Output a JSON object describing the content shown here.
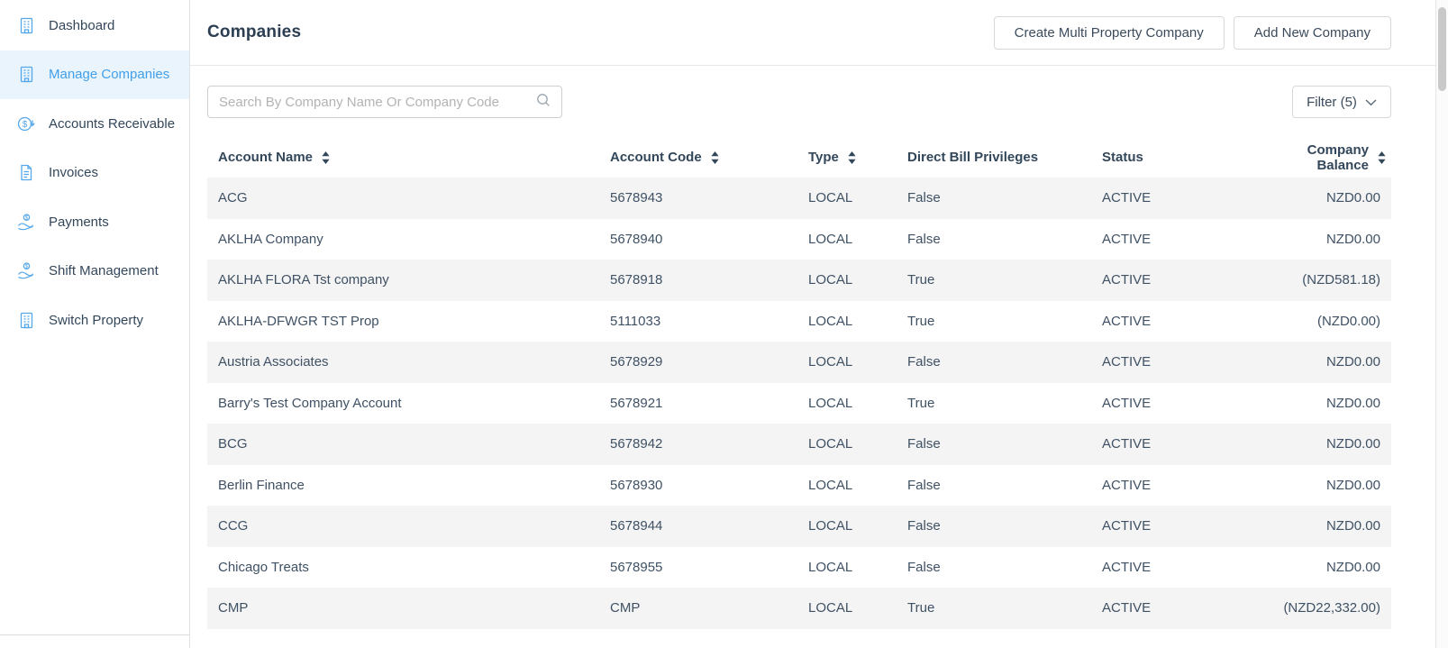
{
  "sidebar": {
    "items": [
      {
        "label": "Dashboard",
        "icon": "building",
        "active": false
      },
      {
        "label": "Manage Companies",
        "icon": "building",
        "active": true
      },
      {
        "label": "Accounts Receivable",
        "icon": "dollar-circle",
        "active": false
      },
      {
        "label": "Invoices",
        "icon": "invoice",
        "active": false
      },
      {
        "label": "Payments",
        "icon": "hand-coin",
        "active": false
      },
      {
        "label": "Shift Management",
        "icon": "hand-coin",
        "active": false
      },
      {
        "label": "Switch Property",
        "icon": "building",
        "active": false
      }
    ]
  },
  "header": {
    "title": "Companies",
    "create_multi_button": "Create Multi Property Company",
    "add_new_button": "Add New Company"
  },
  "toolbar": {
    "search_placeholder": "Search By Company Name Or Company Code",
    "filter_label": "Filter (5)"
  },
  "table": {
    "columns": [
      {
        "label": "Account Name",
        "sortable": true
      },
      {
        "label": "Account Code",
        "sortable": true
      },
      {
        "label": "Type",
        "sortable": true
      },
      {
        "label": "Direct Bill Privileges",
        "sortable": false
      },
      {
        "label": "Status",
        "sortable": false
      },
      {
        "label": "Company Balance",
        "sortable": true
      }
    ],
    "rows": [
      {
        "account_name": "ACG",
        "account_code": "5678943",
        "type": "LOCAL",
        "direct_bill": "False",
        "status": "ACTIVE",
        "balance": "NZD0.00"
      },
      {
        "account_name": "AKLHA Company",
        "account_code": "5678940",
        "type": "LOCAL",
        "direct_bill": "False",
        "status": "ACTIVE",
        "balance": "NZD0.00"
      },
      {
        "account_name": "AKLHA FLORA Tst company",
        "account_code": "5678918",
        "type": "LOCAL",
        "direct_bill": "True",
        "status": "ACTIVE",
        "balance": "(NZD581.18)"
      },
      {
        "account_name": "AKLHA-DFWGR TST Prop",
        "account_code": "5111033",
        "type": "LOCAL",
        "direct_bill": "True",
        "status": "ACTIVE",
        "balance": "(NZD0.00)"
      },
      {
        "account_name": "Austria Associates",
        "account_code": "5678929",
        "type": "LOCAL",
        "direct_bill": "False",
        "status": "ACTIVE",
        "balance": "NZD0.00"
      },
      {
        "account_name": "Barry's Test Company Account",
        "account_code": "5678921",
        "type": "LOCAL",
        "direct_bill": "True",
        "status": "ACTIVE",
        "balance": "NZD0.00"
      },
      {
        "account_name": "BCG",
        "account_code": "5678942",
        "type": "LOCAL",
        "direct_bill": "False",
        "status": "ACTIVE",
        "balance": "NZD0.00"
      },
      {
        "account_name": "Berlin Finance",
        "account_code": "5678930",
        "type": "LOCAL",
        "direct_bill": "False",
        "status": "ACTIVE",
        "balance": "NZD0.00"
      },
      {
        "account_name": "CCG",
        "account_code": "5678944",
        "type": "LOCAL",
        "direct_bill": "False",
        "status": "ACTIVE",
        "balance": "NZD0.00"
      },
      {
        "account_name": "Chicago Treats",
        "account_code": "5678955",
        "type": "LOCAL",
        "direct_bill": "False",
        "status": "ACTIVE",
        "balance": "NZD0.00"
      },
      {
        "account_name": "CMP",
        "account_code": "CMP",
        "type": "LOCAL",
        "direct_bill": "True",
        "status": "ACTIVE",
        "balance": "(NZD22,332.00)"
      }
    ]
  },
  "colors": {
    "accent_blue": "#42a0ea",
    "icon_blue": "#54a7e9",
    "active_item_bg": "#e9f4fd",
    "text_dark": "#33475b",
    "row_stripe": "#f4f4f4"
  }
}
